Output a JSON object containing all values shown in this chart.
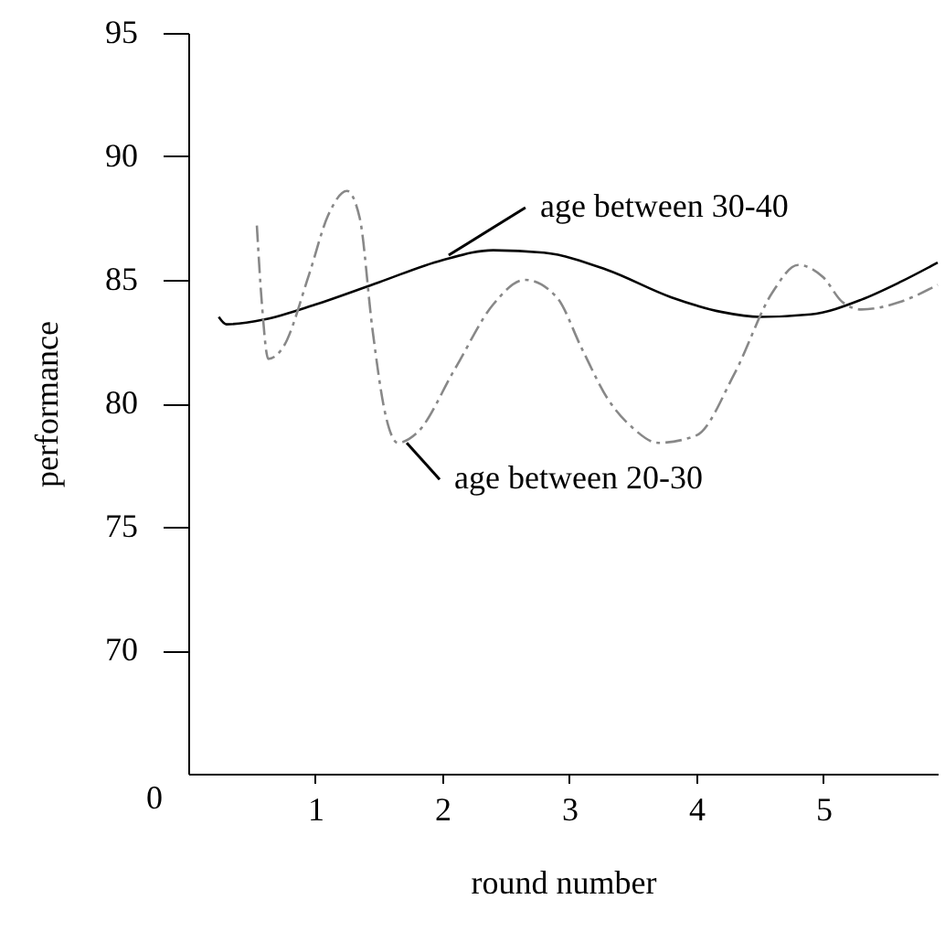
{
  "chart_data": {
    "type": "line",
    "xlabel": "round number",
    "ylabel": "performance",
    "xlim": [
      0,
      5.9
    ],
    "xticks": [
      1,
      2,
      3,
      4,
      5
    ],
    "ylim": [
      65,
      95
    ],
    "yticks": [
      70,
      75,
      80,
      85,
      90,
      95
    ],
    "grid": false,
    "marker": "none",
    "series": [
      {
        "color": "#000000",
        "line_style": "solid",
        "x": [
          0.24,
          0.3,
          0.6,
          1.0,
          1.5,
          2.0,
          2.4,
          2.8,
          3.3,
          3.8,
          4.2,
          4.5,
          4.9,
          5.3,
          5.6,
          5.9
        ],
        "values": [
          83.5,
          83.2,
          83.4,
          84.0,
          84.9,
          85.8,
          86.2,
          86.1,
          85.4,
          84.3,
          83.7,
          83.5,
          83.6,
          84.2,
          84.9,
          85.7
        ]
      },
      {
        "color": "#888888",
        "line_style": "dashed",
        "x": [
          0.54,
          0.58,
          0.63,
          0.75,
          0.95,
          1.1,
          1.25,
          1.35,
          1.45,
          1.55,
          1.65,
          1.8,
          2.1,
          2.4,
          2.65,
          2.9,
          3.1,
          3.3,
          3.5,
          3.7,
          4.0,
          4.3,
          4.6,
          4.8,
          5.0,
          5.15,
          5.3,
          5.6,
          5.9
        ],
        "values": [
          87.2,
          84.0,
          81.8,
          82.3,
          85.2,
          87.6,
          88.6,
          87.5,
          83.0,
          79.6,
          78.4,
          78.8,
          81.4,
          84.0,
          85.0,
          84.3,
          82.2,
          80.2,
          79.0,
          78.4,
          78.7,
          81.2,
          84.5,
          85.6,
          85.1,
          84.1,
          83.8,
          84.1,
          84.8
        ]
      }
    ],
    "annotations": [
      {
        "text": "age between 30-40",
        "x": 2.05,
        "y": 86.0
      },
      {
        "text": "age between 20-30",
        "x": 1.72,
        "y": 78.4
      },
      "0"
    ]
  }
}
